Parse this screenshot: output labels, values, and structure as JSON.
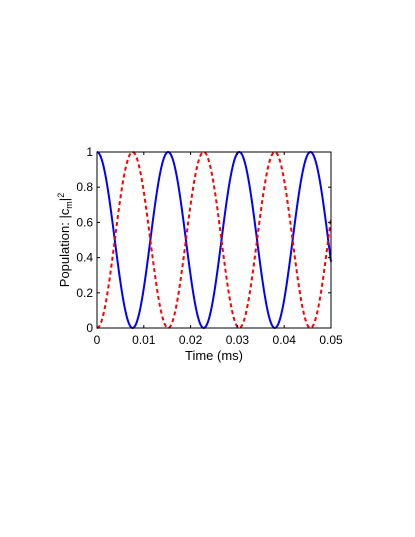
{
  "chart_data": {
    "type": "line",
    "title": "",
    "xlabel": "Time (ms)",
    "ylabel": {
      "prefix": "Population: |c",
      "subscript": "m",
      "suffix": "|",
      "superscript": "2"
    },
    "xlim": [
      0,
      0.05
    ],
    "ylim": [
      0,
      1
    ],
    "x_ticks": [
      0,
      0.01,
      0.02,
      0.03,
      0.04,
      0.05
    ],
    "x_tick_labels": [
      "0",
      "0.01",
      "0.02",
      "0.03",
      "0.04",
      "0.05"
    ],
    "y_ticks": [
      0,
      0.2,
      0.4,
      0.6,
      0.8,
      1
    ],
    "y_tick_labels": [
      "0",
      "0.2",
      "0.4",
      "0.6",
      "0.8",
      "1"
    ],
    "grid": false,
    "legend": "none",
    "series": [
      {
        "style": "solid",
        "color": "#0000ff",
        "function": "cos2",
        "period_ms": 0.0152,
        "x": [
          0,
          0.0038,
          0.0076,
          0.0114,
          0.0152,
          0.019,
          0.0228,
          0.0266,
          0.0304,
          0.0342,
          0.038,
          0.0418,
          0.0456,
          0.05
        ],
        "y": [
          1,
          0.5,
          0,
          0.5,
          1,
          0.5,
          0,
          0.5,
          1,
          0.5,
          0,
          0.5,
          1,
          0.28
        ]
      },
      {
        "style": "dashed",
        "color": "#ff0000",
        "function": "sin2",
        "period_ms": 0.0152,
        "x": [
          0,
          0.0038,
          0.0076,
          0.0114,
          0.0152,
          0.019,
          0.0228,
          0.0266,
          0.0304,
          0.0342,
          0.038,
          0.0418,
          0.0456,
          0.05
        ],
        "y": [
          0,
          0.5,
          1,
          0.5,
          0,
          0.5,
          1,
          0.5,
          0,
          0.5,
          1,
          0.5,
          0,
          0.72
        ]
      }
    ]
  }
}
